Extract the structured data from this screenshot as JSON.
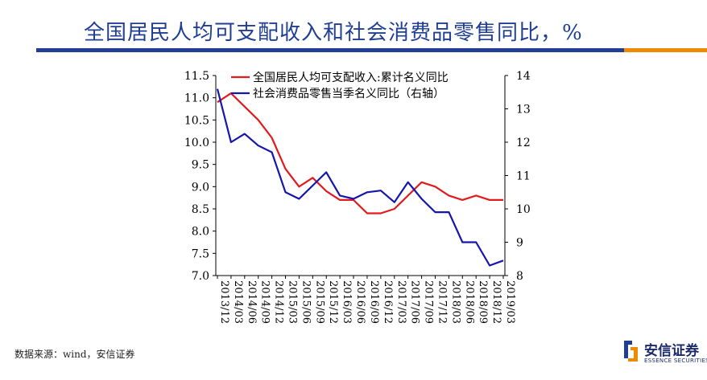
{
  "header": {
    "title": "全国居民人均可支配收入和社会消费品零售同比，%"
  },
  "footer": {
    "source": "数据来源：wind，安信证券",
    "logo_cn": "安信证券",
    "logo_en": "ESSENCE SECURITIES"
  },
  "colors": {
    "title": "#1f3e94",
    "rule_blue": "#1f3e94",
    "rule_orange": "#f08a00",
    "series_income": "#e31a1c",
    "series_retail": "#1515b0"
  },
  "chart_data": {
    "type": "line",
    "title": "",
    "categories": [
      "2013/12",
      "2014/03",
      "2014/06",
      "2014/09",
      "2014/12",
      "2015/03",
      "2015/06",
      "2015/09",
      "2015/12",
      "2016/03",
      "2016/06",
      "2016/09",
      "2016/12",
      "2017/03",
      "2017/06",
      "2017/09",
      "2017/12",
      "2018/03",
      "2018/06",
      "2018/09",
      "2018/12",
      "2019/03"
    ],
    "y_left": {
      "min": 7.0,
      "max": 11.5,
      "ticks": [
        "7.0",
        "7.5",
        "8.0",
        "8.5",
        "9.0",
        "9.5",
        "10.0",
        "10.5",
        "11.0",
        "11.5"
      ]
    },
    "y_right": {
      "min": 8,
      "max": 14,
      "ticks": [
        "8",
        "9",
        "10",
        "11",
        "12",
        "13",
        "14"
      ]
    },
    "series": [
      {
        "name": "全国居民人均可支配收入:累计名义同比",
        "axis": "left",
        "color": "#e31a1c",
        "values": [
          10.9,
          11.1,
          10.8,
          10.5,
          10.1,
          9.4,
          9.0,
          9.2,
          8.9,
          8.7,
          8.7,
          8.4,
          8.4,
          8.5,
          8.8,
          9.1,
          9.0,
          8.8,
          8.7,
          8.8,
          8.7,
          8.7
        ]
      },
      {
        "name": "社会消费品零售当季名义同比（右轴）",
        "axis": "right",
        "color": "#1515b0",
        "values": [
          13.6,
          12.0,
          12.25,
          11.9,
          11.7,
          10.5,
          10.3,
          10.7,
          11.1,
          10.4,
          10.3,
          10.5,
          10.55,
          10.2,
          10.8,
          10.3,
          9.9,
          9.9,
          9.0,
          9.0,
          8.3,
          8.45
        ]
      }
    ],
    "legend_position": "top"
  }
}
